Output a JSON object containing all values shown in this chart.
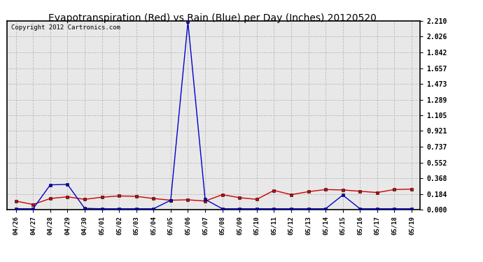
{
  "title": "Evapotranspiration (Red) vs Rain (Blue) per Day (Inches) 20120520",
  "copyright": "Copyright 2012 Cartronics.com",
  "x_labels": [
    "04/26",
    "04/27",
    "04/28",
    "04/29",
    "04/30",
    "05/01",
    "05/02",
    "05/03",
    "05/04",
    "05/05",
    "05/06",
    "05/07",
    "05/08",
    "05/09",
    "05/10",
    "05/11",
    "05/12",
    "05/13",
    "05/14",
    "05/15",
    "05/16",
    "05/17",
    "05/18",
    "05/19"
  ],
  "red_data": [
    0.1,
    0.06,
    0.13,
    0.15,
    0.12,
    0.145,
    0.16,
    0.155,
    0.13,
    0.11,
    0.115,
    0.1,
    0.175,
    0.14,
    0.12,
    0.225,
    0.175,
    0.21,
    0.235,
    0.23,
    0.215,
    0.2,
    0.235,
    0.24
  ],
  "blue_data": [
    0.01,
    0.01,
    0.29,
    0.295,
    0.015,
    0.01,
    0.01,
    0.01,
    0.01,
    0.11,
    2.2,
    0.12,
    0.01,
    0.01,
    0.01,
    0.01,
    0.01,
    0.01,
    0.01,
    0.17,
    0.01,
    0.01,
    0.01,
    0.01
  ],
  "red_color": "#cc0000",
  "blue_color": "#0000cc",
  "marker_color": "#000000",
  "background_color": "#ffffff",
  "plot_bg_color": "#e8e8e8",
  "grid_color": "#bbbbbb",
  "y_ticks": [
    0.0,
    0.184,
    0.368,
    0.552,
    0.737,
    0.921,
    1.105,
    1.289,
    1.473,
    1.657,
    1.842,
    2.026,
    2.21
  ],
  "ylim": [
    0.0,
    2.21
  ],
  "title_fontsize": 10,
  "copyright_fontsize": 6.5,
  "tick_fontsize": 6.5,
  "ytick_fontsize": 7
}
